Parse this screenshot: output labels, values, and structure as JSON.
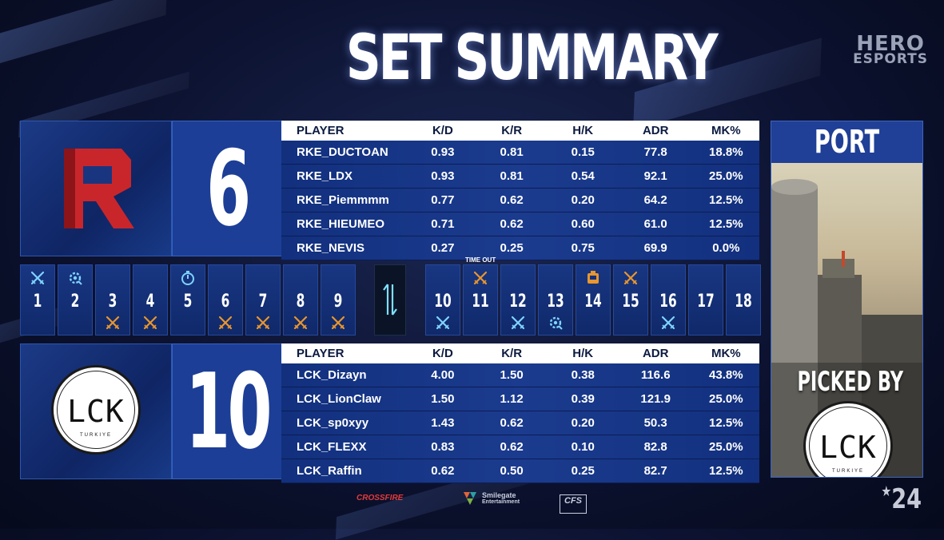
{
  "title": "SET SUMMARY",
  "brand": {
    "line1": "HERO",
    "line2": "ESPORTS"
  },
  "team_top": {
    "score": "6",
    "logo_letter": "R",
    "columns": [
      "PLAYER",
      "K/D",
      "K/R",
      "H/K",
      "ADR",
      "MK%"
    ],
    "players": [
      [
        "RKE_DUCTOAN",
        "0.93",
        "0.81",
        "0.15",
        "77.8",
        "18.8%"
      ],
      [
        "RKE_LDX",
        "0.93",
        "0.81",
        "0.54",
        "92.1",
        "25.0%"
      ],
      [
        "RKE_Piemmmm",
        "0.77",
        "0.62",
        "0.20",
        "64.2",
        "12.5%"
      ],
      [
        "RKE_HIEUMEO",
        "0.71",
        "0.62",
        "0.60",
        "61.0",
        "12.5%"
      ],
      [
        "RKE_NEVIS",
        "0.27",
        "0.25",
        "0.75",
        "69.9",
        "0.0%"
      ]
    ]
  },
  "team_bottom": {
    "score": "10",
    "logo_text": "LCK",
    "logo_sub": "TURKIYE",
    "columns": [
      "PLAYER",
      "K/D",
      "K/R",
      "H/K",
      "ADR",
      "MK%"
    ],
    "players": [
      [
        "LCK_Dizayn",
        "4.00",
        "1.50",
        "0.38",
        "116.6",
        "43.8%"
      ],
      [
        "LCK_LionClaw",
        "1.50",
        "1.12",
        "0.39",
        "121.9",
        "25.0%"
      ],
      [
        "LCK_sp0xyy",
        "1.43",
        "0.62",
        "0.20",
        "50.3",
        "12.5%"
      ],
      [
        "LCK_FLEXX",
        "0.83",
        "0.62",
        "0.10",
        "82.8",
        "25.0%"
      ],
      [
        "LCK_Raffin",
        "0.62",
        "0.50",
        "0.25",
        "82.7",
        "12.5%"
      ]
    ]
  },
  "timeout_label": "TIME OUT",
  "rounds": [
    {
      "n": "1",
      "top": "swords-icon",
      "bot": ""
    },
    {
      "n": "2",
      "top": "defuse-icon",
      "bot": ""
    },
    {
      "n": "3",
      "top": "",
      "bot": "swords-icon"
    },
    {
      "n": "4",
      "top": "",
      "bot": "swords-icon"
    },
    {
      "n": "5",
      "top": "timer-icon",
      "bot": ""
    },
    {
      "n": "6",
      "top": "",
      "bot": "swords-icon"
    },
    {
      "n": "7",
      "top": "",
      "bot": "swords-icon"
    },
    {
      "n": "8",
      "top": "",
      "bot": "swords-icon"
    },
    {
      "n": "9",
      "top": "",
      "bot": "swords-icon"
    },
    {
      "n": "10",
      "top": "",
      "bot": "swords-icon"
    },
    {
      "n": "11",
      "top": "swords-icon",
      "bot": ""
    },
    {
      "n": "12",
      "top": "",
      "bot": "swords-icon"
    },
    {
      "n": "13",
      "top": "",
      "bot": "defuse-icon"
    },
    {
      "n": "14",
      "top": "bomb-icon",
      "bot": ""
    },
    {
      "n": "15",
      "top": "swords-icon",
      "bot": ""
    },
    {
      "n": "16",
      "top": "",
      "bot": "swords-icon"
    },
    {
      "n": "17",
      "top": "",
      "bot": ""
    },
    {
      "n": "18",
      "top": "",
      "bot": ""
    }
  ],
  "map": {
    "name": "PORT",
    "picked_by": "PICKED BY",
    "picked_team": "LCK",
    "picked_team_sub": "TURKIYE"
  },
  "footer": {
    "crossfire": "CROSSFIRE",
    "smilegate": "Smilegate",
    "smilegate_sub": "Entertainment",
    "cfs": "CFS",
    "year": "24"
  },
  "colors": {
    "ct": "#7fd4ff",
    "t": "#e8962e",
    "panel": "#1c3e97"
  }
}
